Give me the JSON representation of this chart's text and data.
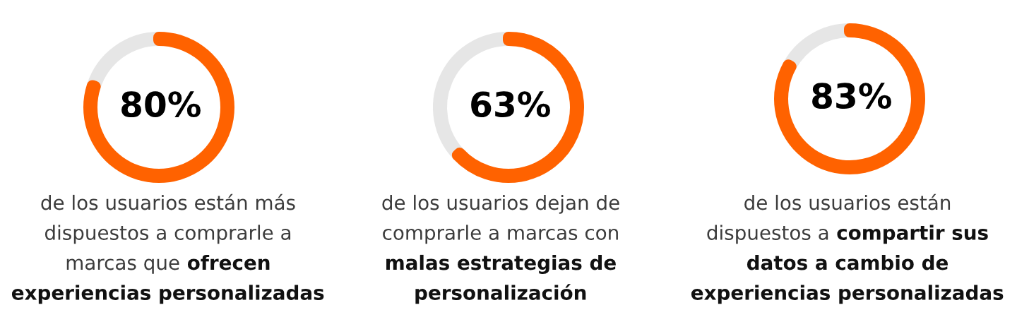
{
  "chart_data": [
    {
      "type": "donut",
      "categories": [
        null,
        null
      ],
      "values": [
        80,
        20
      ],
      "colors": [
        "#ff6200",
        "#e6e6e6"
      ],
      "value_labels": [
        "80%",
        null
      ],
      "annotations": [
        "de los usuarios están más",
        "dispuestos a comprarle a",
        "marcas que",
        "ofrecen",
        "experiencias personalizadas"
      ]
    },
    {
      "type": "donut",
      "categories": [
        null,
        null
      ],
      "values": [
        63,
        37
      ],
      "colors": [
        "#ff6200",
        "#e6e6e6"
      ],
      "value_labels": [
        "63%",
        null
      ],
      "annotations": [
        "de los usuarios dejan de",
        "comprarle a marcas con",
        "malas estrategias de",
        "personalización"
      ]
    },
    {
      "type": "donut",
      "categories": [
        null,
        null
      ],
      "values": [
        83,
        17
      ],
      "colors": [
        "#ff6200",
        "#e6e6e6"
      ],
      "value_labels": [
        "83%",
        null
      ],
      "annotations": [
        "de los usuarios están",
        "dispuestos a",
        "compartir sus",
        "datos a cambio de",
        "experiencias personalizadas"
      ]
    }
  ]
}
